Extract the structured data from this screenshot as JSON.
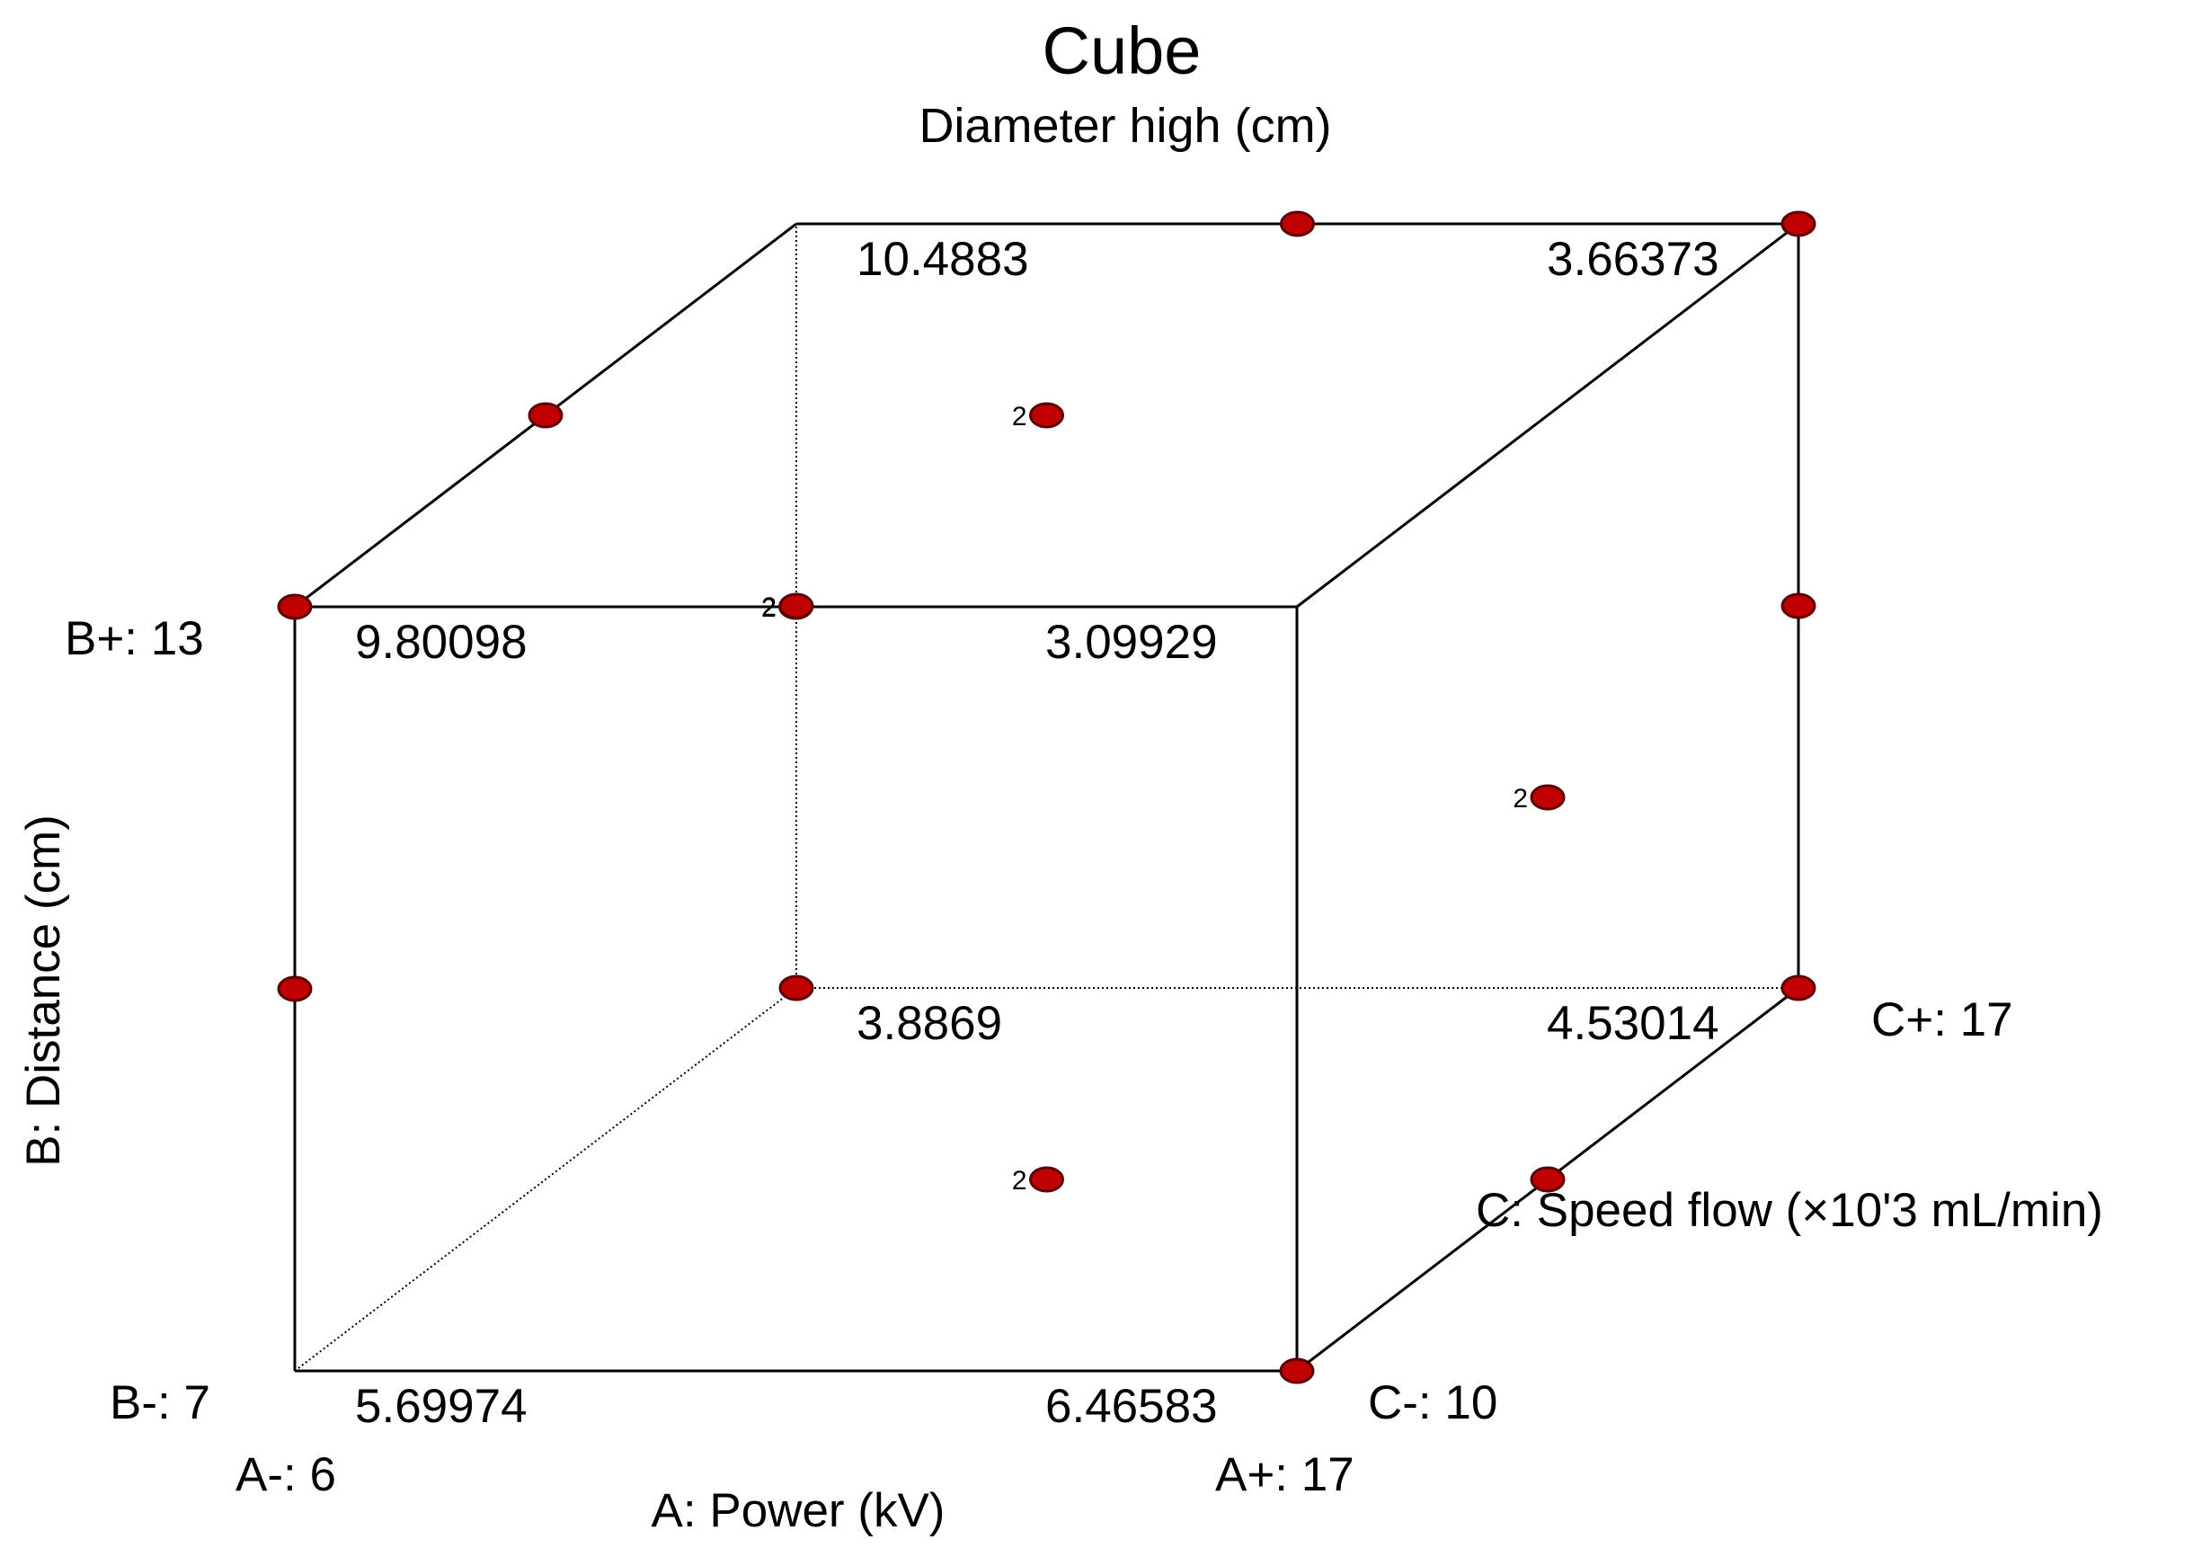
{
  "chart_data": {
    "type": "cube",
    "title": "Cube",
    "subtitle": "Diameter high (cm)",
    "colors": {
      "edge": "#000000",
      "point_fill": "#c00000",
      "point_stroke": "#5a0000"
    },
    "axes": {
      "a": {
        "label": "A: Power (kV)",
        "low_label": "A-: 6",
        "high_label": "A+: 17",
        "range": [
          6,
          17
        ]
      },
      "b": {
        "label": "B: Distance (cm)",
        "low_label": "B-: 7",
        "high_label": "B+: 13",
        "range": [
          7,
          13
        ]
      },
      "c": {
        "label": "C: Speed flow (×10'3 mL/min)",
        "low_label": "C-: 10",
        "high_label": "C+: 17",
        "range": [
          10,
          17
        ]
      }
    },
    "corners": [
      {
        "a": -1,
        "b": -1,
        "c": -1,
        "value": "5.69974"
      },
      {
        "a": 1,
        "b": -1,
        "c": -1,
        "value": "6.46583"
      },
      {
        "a": -1,
        "b": 1,
        "c": -1,
        "value": "9.80098"
      },
      {
        "a": 1,
        "b": 1,
        "c": -1,
        "value": "3.09929"
      },
      {
        "a": -1,
        "b": -1,
        "c": 1,
        "value": "3.8869"
      },
      {
        "a": 1,
        "b": -1,
        "c": 1,
        "value": "4.53014"
      },
      {
        "a": -1,
        "b": 1,
        "c": 1,
        "value": "10.4883"
      },
      {
        "a": 1,
        "b": 1,
        "c": 1,
        "value": "3.66373"
      }
    ],
    "design_points": [
      {
        "a": -1,
        "b": 1,
        "c": -1,
        "count": 1
      },
      {
        "a": 1,
        "b": -1,
        "c": -1,
        "count": 1
      },
      {
        "a": -1,
        "b": -1,
        "c": 1,
        "count": 1
      },
      {
        "a": 1,
        "b": -1,
        "c": 1,
        "count": 1
      },
      {
        "a": 1,
        "b": 1,
        "c": 1,
        "count": 1
      },
      {
        "a": -1,
        "b": 0,
        "c": -1,
        "count": 1
      },
      {
        "a": -1,
        "b": 1,
        "c": 0,
        "count": 1
      },
      {
        "a": 0,
        "b": 1,
        "c": -1,
        "count": 2
      },
      {
        "a": -1,
        "b": 0,
        "c": 1,
        "count": 2
      },
      {
        "a": 0,
        "b": 1,
        "c": 1,
        "count": 1
      },
      {
        "a": 0,
        "b": 1,
        "c": 0,
        "count": 2
      },
      {
        "a": 1,
        "b": 0,
        "c": 0,
        "count": 2
      },
      {
        "a": 1,
        "b": 0,
        "c": 1,
        "count": 1
      },
      {
        "a": 1,
        "b": -1,
        "c": 0,
        "count": 1
      },
      {
        "a": 0,
        "b": -1,
        "c": 0,
        "count": 2
      }
    ]
  }
}
